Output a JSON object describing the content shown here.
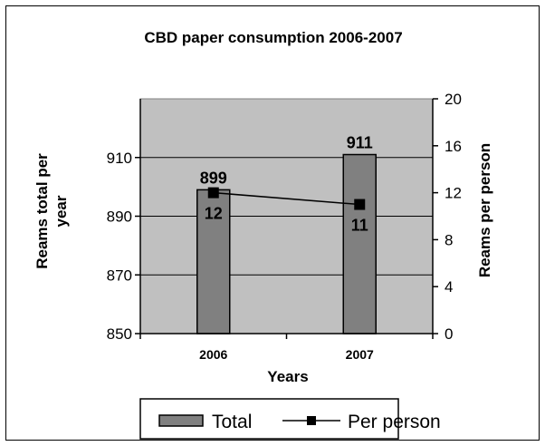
{
  "chart_data": {
    "type": "bar",
    "title": "CBD paper consumption 2006-2007",
    "xlabel": "Years",
    "ylabel": "Reams total per year",
    "y2label": "Reams per person",
    "categories": [
      "2006",
      "2007"
    ],
    "ylim": [
      850,
      930
    ],
    "yticks": [
      "850",
      "870",
      "890",
      "910"
    ],
    "y2lim": [
      0,
      20
    ],
    "y2ticks": [
      "0",
      "4",
      "8",
      "12",
      "16",
      "20"
    ],
    "grid": true,
    "legend": "bottom",
    "series": [
      {
        "name": "Total",
        "type": "bar",
        "axis": "left",
        "values": [
          899,
          911
        ],
        "labels": [
          "899",
          "911"
        ],
        "color": "#808080"
      },
      {
        "name": "Per person",
        "type": "line",
        "axis": "right",
        "values": [
          12,
          11
        ],
        "labels": [
          "12",
          "11"
        ],
        "color": "#000000"
      }
    ],
    "plot_background": "#c0c0c0"
  }
}
